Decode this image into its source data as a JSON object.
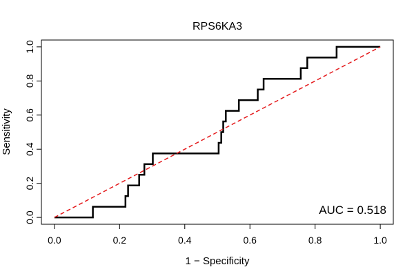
{
  "chart_data": {
    "type": "line",
    "title": "RPS6KA3",
    "xlabel": "1 − Specificity",
    "ylabel": "Sensitivity",
    "xlim": [
      -0.04,
      1.04
    ],
    "ylim": [
      -0.04,
      1.04
    ],
    "x_ticks": [
      {
        "value": 0.0,
        "label": "0.0"
      },
      {
        "value": 0.2,
        "label": "0.2"
      },
      {
        "value": 0.4,
        "label": "0.4"
      },
      {
        "value": 0.6,
        "label": "0.6"
      },
      {
        "value": 0.8,
        "label": "0.8"
      },
      {
        "value": 1.0,
        "label": "1.0"
      }
    ],
    "y_ticks": [
      {
        "value": 0.0,
        "label": "0.0"
      },
      {
        "value": 0.2,
        "label": "0.2"
      },
      {
        "value": 0.4,
        "label": "0.4"
      },
      {
        "value": 0.6,
        "label": "0.6"
      },
      {
        "value": 0.8,
        "label": "0.8"
      },
      {
        "value": 1.0,
        "label": "1.0"
      }
    ],
    "grid": false,
    "annotation": "AUC = 0.518",
    "series": [
      {
        "color": "#000000",
        "style": "solid",
        "x": [
          0.0,
          0.118,
          0.118,
          0.218,
          0.218,
          0.226,
          0.226,
          0.26,
          0.26,
          0.268,
          0.268,
          0.276,
          0.276,
          0.302,
          0.302,
          0.504,
          0.504,
          0.512,
          0.512,
          0.518,
          0.518,
          0.522,
          0.522,
          0.526,
          0.526,
          0.53,
          0.53,
          0.566,
          0.566,
          0.624,
          0.624,
          0.642,
          0.642,
          0.756,
          0.756,
          0.776,
          0.776,
          0.866,
          0.866,
          1.0
        ],
        "y": [
          0.0,
          0.0,
          0.0625,
          0.0625,
          0.125,
          0.125,
          0.1875,
          0.1875,
          0.25,
          0.25,
          0.25,
          0.25,
          0.3125,
          0.3125,
          0.375,
          0.375,
          0.4375,
          0.4375,
          0.5,
          0.5,
          0.5625,
          0.5625,
          0.5625,
          0.5625,
          0.625,
          0.625,
          0.625,
          0.625,
          0.6875,
          0.6875,
          0.75,
          0.75,
          0.8125,
          0.8125,
          0.875,
          0.875,
          0.9375,
          0.9375,
          1.0,
          1.0
        ]
      },
      {
        "color": "#e41a1c",
        "style": "dashed",
        "x": [
          0.0,
          1.0
        ],
        "y": [
          0.0,
          1.0
        ]
      }
    ]
  }
}
